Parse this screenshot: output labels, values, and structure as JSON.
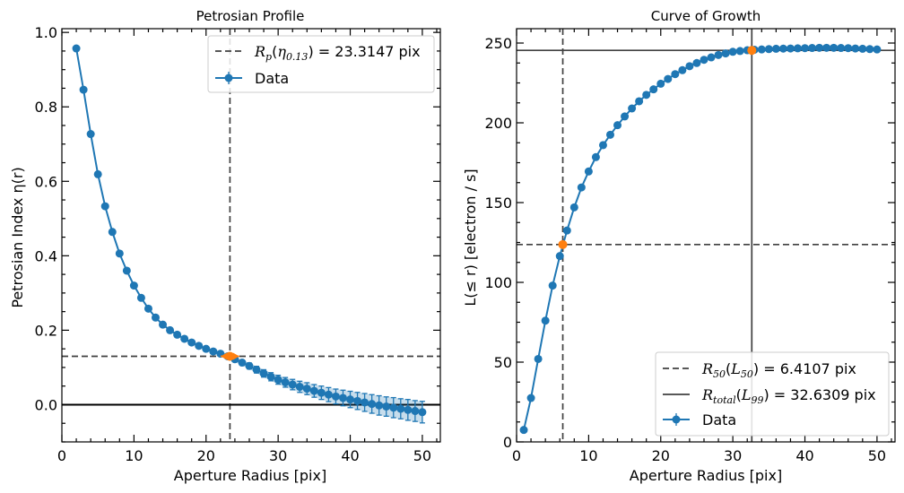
{
  "chart_data": [
    {
      "type": "line",
      "title": "Petrosian Profile",
      "xlabel": "Aperture Radius [pix]",
      "ylabel": "Petrosian Index η(r)",
      "xlim": [
        0,
        52.5
      ],
      "ylim": [
        -0.1,
        1.01
      ],
      "xticks": [
        0,
        10,
        20,
        30,
        40,
        50
      ],
      "yticks": [
        0.0,
        0.2,
        0.4,
        0.6,
        0.8,
        1.0
      ],
      "ytick_labels": [
        "0.0",
        "0.2",
        "0.4",
        "0.6",
        "0.8",
        "1.0"
      ],
      "colors": {
        "series": "#1f77b4",
        "highlight": "#ff7f0e",
        "ref": "#404040"
      },
      "legend_position": "upper right",
      "reference_lines": [
        {
          "orientation": "vertical",
          "value": 23.3147,
          "style": "dashed"
        },
        {
          "orientation": "horizontal",
          "value": 0.13,
          "style": "dashed"
        },
        {
          "orientation": "horizontal",
          "value": 0.0,
          "style": "solid"
        }
      ],
      "legend": {
        "rp_label": "R_p(η_0.13) = 23.3147 pix",
        "rp_math": {
          "base": "R",
          "sub": "p",
          "arg": "η",
          "argsub": "0.13",
          "value": " = 23.3147 pix"
        },
        "data_label": "Data"
      },
      "highlight_point": {
        "x": 23.3147,
        "y": 0.13,
        "xerr": 1.3
      },
      "series": [
        {
          "name": "Data",
          "x": [
            2,
            3,
            4,
            5,
            6,
            7,
            8,
            9,
            10,
            11,
            12,
            13,
            14,
            15,
            16,
            17,
            18,
            19,
            20,
            21,
            22,
            23,
            24,
            25,
            26,
            27,
            28,
            29,
            30,
            31,
            32,
            33,
            34,
            35,
            36,
            37,
            38,
            39,
            40,
            41,
            42,
            43,
            44,
            45,
            46,
            47,
            48,
            49,
            50
          ],
          "y": [
            0.957,
            0.846,
            0.727,
            0.619,
            0.533,
            0.464,
            0.406,
            0.36,
            0.32,
            0.287,
            0.258,
            0.234,
            0.215,
            0.2,
            0.188,
            0.177,
            0.167,
            0.158,
            0.15,
            0.143,
            0.137,
            0.13,
            0.122,
            0.113,
            0.104,
            0.094,
            0.084,
            0.075,
            0.067,
            0.06,
            0.054,
            0.048,
            0.043,
            0.037,
            0.032,
            0.027,
            0.022,
            0.018,
            0.014,
            0.01,
            0.006,
            0.002,
            -0.002,
            -0.005,
            -0.008,
            -0.011,
            -0.014,
            -0.017,
            -0.02
          ],
          "yerr": [
            0.002,
            0.002,
            0.002,
            0.002,
            0.002,
            0.002,
            0.002,
            0.002,
            0.002,
            0.002,
            0.002,
            0.002,
            0.002,
            0.002,
            0.002,
            0.002,
            0.002,
            0.002,
            0.003,
            0.003,
            0.004,
            0.005,
            0.006,
            0.007,
            0.008,
            0.009,
            0.01,
            0.011,
            0.012,
            0.013,
            0.014,
            0.015,
            0.016,
            0.017,
            0.018,
            0.019,
            0.02,
            0.021,
            0.022,
            0.023,
            0.024,
            0.025,
            0.026,
            0.026,
            0.027,
            0.027,
            0.028,
            0.028,
            0.029
          ]
        }
      ]
    },
    {
      "type": "line",
      "title": "Curve of Growth",
      "xlabel": "Aperture Radius [pix]",
      "ylabel": "L(≤ r) [electron / s]",
      "xlim": [
        0,
        52.5
      ],
      "ylim": [
        0,
        259
      ],
      "xticks": [
        0,
        10,
        20,
        30,
        40,
        50
      ],
      "yticks": [
        0,
        50,
        100,
        150,
        200,
        250
      ],
      "ytick_labels": [
        "0",
        "50",
        "100",
        "150",
        "200",
        "250"
      ],
      "colors": {
        "series": "#1f77b4",
        "highlight": "#ff7f0e",
        "ref": "#404040"
      },
      "legend_position": "lower right",
      "reference_lines": [
        {
          "orientation": "vertical",
          "value": 6.4107,
          "style": "dashed"
        },
        {
          "orientation": "horizontal",
          "value": 123.7,
          "style": "dashed"
        },
        {
          "orientation": "vertical",
          "value": 32.6309,
          "style": "solid"
        },
        {
          "orientation": "horizontal",
          "value": 245.4,
          "style": "solid"
        }
      ],
      "legend": {
        "r50_label": "R_50(L_50) = 6.4107 pix",
        "r50_math": {
          "base": "R",
          "sub": "50",
          "arg": "L",
          "argsub": "50",
          "value": " = 6.4107 pix"
        },
        "rtotal_label": "R_total(L_99) = 32.6309 pix",
        "rtotal_math": {
          "base": "R",
          "sub": "total",
          "arg": "L",
          "argsub": "99",
          "value": " = 32.6309 pix"
        },
        "data_label": "Data"
      },
      "highlight_points": [
        {
          "x": 6.4107,
          "y": 123.7
        },
        {
          "x": 32.6309,
          "y": 245.4
        }
      ],
      "series": [
        {
          "name": "Data",
          "x": [
            1,
            2,
            3,
            4,
            5,
            6,
            7,
            8,
            9,
            10,
            11,
            12,
            13,
            14,
            15,
            16,
            17,
            18,
            19,
            20,
            21,
            22,
            23,
            24,
            25,
            26,
            27,
            28,
            29,
            30,
            31,
            32,
            33,
            34,
            35,
            36,
            37,
            38,
            39,
            40,
            41,
            42,
            43,
            44,
            45,
            46,
            47,
            48,
            49,
            50
          ],
          "y": [
            7.5,
            27.5,
            52,
            76,
            98,
            116.5,
            132.5,
            147,
            159.5,
            169.5,
            178.5,
            186,
            192.5,
            198.5,
            204,
            209,
            213.5,
            217.5,
            221,
            224.5,
            227.5,
            230.5,
            233,
            235.5,
            237.5,
            239.5,
            241,
            242.5,
            243.5,
            244.5,
            245,
            245.5,
            245.8,
            246,
            246.2,
            246.4,
            246.5,
            246.6,
            246.7,
            246.8,
            246.9,
            247,
            247,
            247,
            246.9,
            246.8,
            246.6,
            246.4,
            246.2,
            246
          ]
        }
      ]
    }
  ]
}
